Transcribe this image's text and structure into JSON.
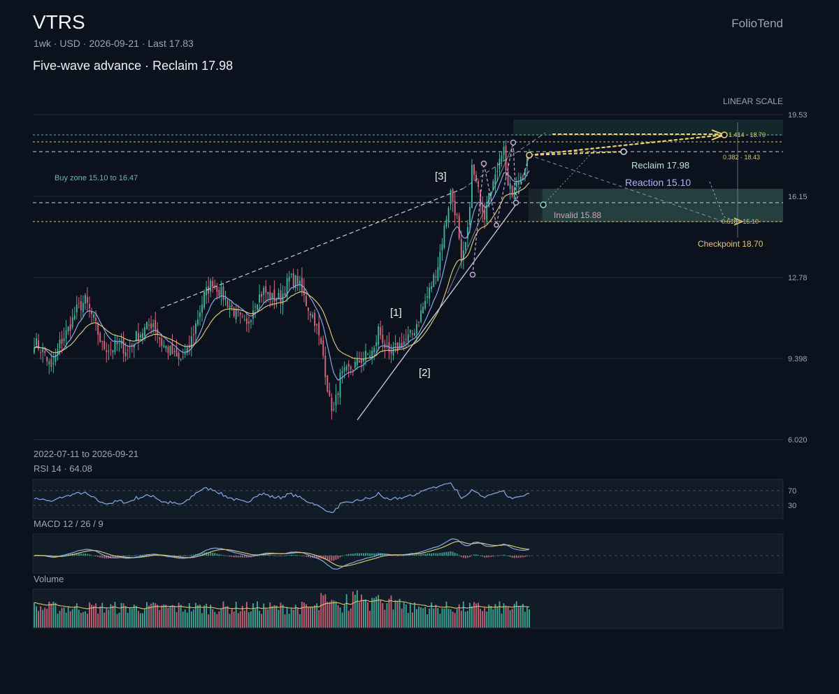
{
  "header": {
    "ticker": "VTRS",
    "subtitle": "1wk · USD · 2026-09-21 · Last 17.83",
    "headline": "Five-wave advance · Reclaim 17.98",
    "brand": "FolioTend"
  },
  "chart_data": {
    "type": "candlestick",
    "scale_label": "LINEAR SCALE",
    "date_range_label": "2022-07-11 to 2026-09-21",
    "y_ticks": [
      "19.53",
      "16.15",
      "12.78",
      "9.398",
      "6.020"
    ],
    "y_range": [
      6.02,
      19.53
    ],
    "last": 17.83,
    "annotations": {
      "buy_zone": "Buy zone 15.10 to 16.47",
      "reclaim": "Reclaim 17.98",
      "reaction": "Reaction 15.10",
      "invalid": "Invalid 15.88",
      "checkpoint": "Checkpoint 18.70",
      "fib_1": "1.414 · 18.70",
      "fib_2": "0.382 · 18.43",
      "fib_3": "0.618 · 15.10",
      "wave_labels": [
        "[1]",
        "[2]",
        "[3]"
      ]
    },
    "price_anchors": [
      [
        0,
        10.1
      ],
      [
        5,
        9.6
      ],
      [
        8,
        8.9
      ],
      [
        12,
        10.0
      ],
      [
        16,
        10.6
      ],
      [
        20,
        11.4
      ],
      [
        24,
        11.8
      ],
      [
        28,
        11.0
      ],
      [
        32,
        9.9
      ],
      [
        36,
        9.8
      ],
      [
        40,
        10.0
      ],
      [
        44,
        9.7
      ],
      [
        48,
        10.3
      ],
      [
        52,
        10.6
      ],
      [
        56,
        10.9
      ],
      [
        60,
        10.0
      ],
      [
        64,
        9.7
      ],
      [
        68,
        9.3
      ],
      [
        72,
        9.6
      ],
      [
        76,
        10.8
      ],
      [
        80,
        12.0
      ],
      [
        84,
        12.6
      ],
      [
        88,
        12.1
      ],
      [
        92,
        11.6
      ],
      [
        96,
        11.1
      ],
      [
        100,
        10.7
      ],
      [
        104,
        11.8
      ],
      [
        108,
        12.2
      ],
      [
        112,
        11.9
      ],
      [
        116,
        11.9
      ],
      [
        120,
        12.7
      ],
      [
        124,
        12.6
      ],
      [
        128,
        11.7
      ],
      [
        132,
        11.0
      ],
      [
        136,
        9.5
      ],
      [
        139,
        7.6
      ],
      [
        141,
        7.2
      ],
      [
        144,
        8.6
      ],
      [
        148,
        8.9
      ],
      [
        152,
        9.2
      ],
      [
        156,
        9.5
      ],
      [
        160,
        9.7
      ],
      [
        162,
        10.6
      ],
      [
        164,
        10.2
      ],
      [
        167,
        9.4
      ],
      [
        170,
        9.8
      ],
      [
        174,
        10.1
      ],
      [
        178,
        10.4
      ],
      [
        182,
        11.3
      ],
      [
        186,
        12.2
      ],
      [
        190,
        13.3
      ],
      [
        193,
        14.8
      ],
      [
        196,
        16.3
      ],
      [
        199,
        15.2
      ],
      [
        201,
        13.2
      ],
      [
        204,
        14.6
      ],
      [
        206,
        17.3
      ],
      [
        209,
        16.3
      ],
      [
        212,
        15.4
      ],
      [
        214,
        16.5
      ],
      [
        217,
        16.8
      ],
      [
        219,
        17.9
      ],
      [
        221,
        18.1
      ],
      [
        223,
        16.6
      ],
      [
        225,
        16.2
      ],
      [
        228,
        16.8
      ],
      [
        231,
        17.4
      ],
      [
        233,
        17.83
      ]
    ],
    "rsi": {
      "label": "RSI 14 · 64.08",
      "value": 64.08,
      "levels": [
        70,
        30
      ]
    },
    "macd": {
      "label": "MACD 12 / 26 / 9"
    },
    "volume": {
      "label": "Volume"
    }
  },
  "colors": {
    "up": "#3fb59c",
    "down": "#d8687f",
    "ma_fast": "#86a9e8",
    "ma_slow": "#d9c278",
    "accent_gold": "#f2d36b",
    "wave_line": "#c7cfe0",
    "zone": "#3b5c58"
  }
}
